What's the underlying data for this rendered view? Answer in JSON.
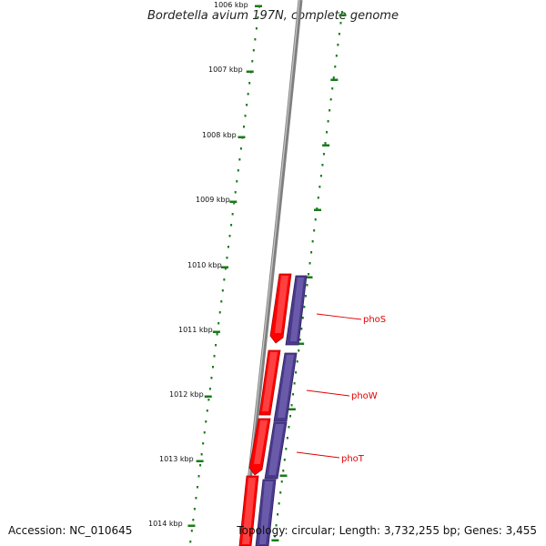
{
  "title": "Bordetella avium 197N, complete genome",
  "accession": "Accession: NC_010645",
  "topology": "Topology: circular; Length: 3,732,255 bp; Genes: 3,455",
  "scale_labels": [
    "1006 kbp",
    "1007 kbp",
    "1008 kbp",
    "1009 kbp",
    "1010 kbp",
    "1011 kbp",
    "1012 kbp",
    "1013 kbp",
    "1014 kbp"
  ],
  "gene_labels": [
    "phoS",
    "phoW",
    "phoT"
  ],
  "colors": {
    "forward_gene": "#ff0000",
    "reverse_gene": "#4b3a8c",
    "backbone": "#808080",
    "tick": "#1a7a1a",
    "label_line": "#e00000"
  }
}
